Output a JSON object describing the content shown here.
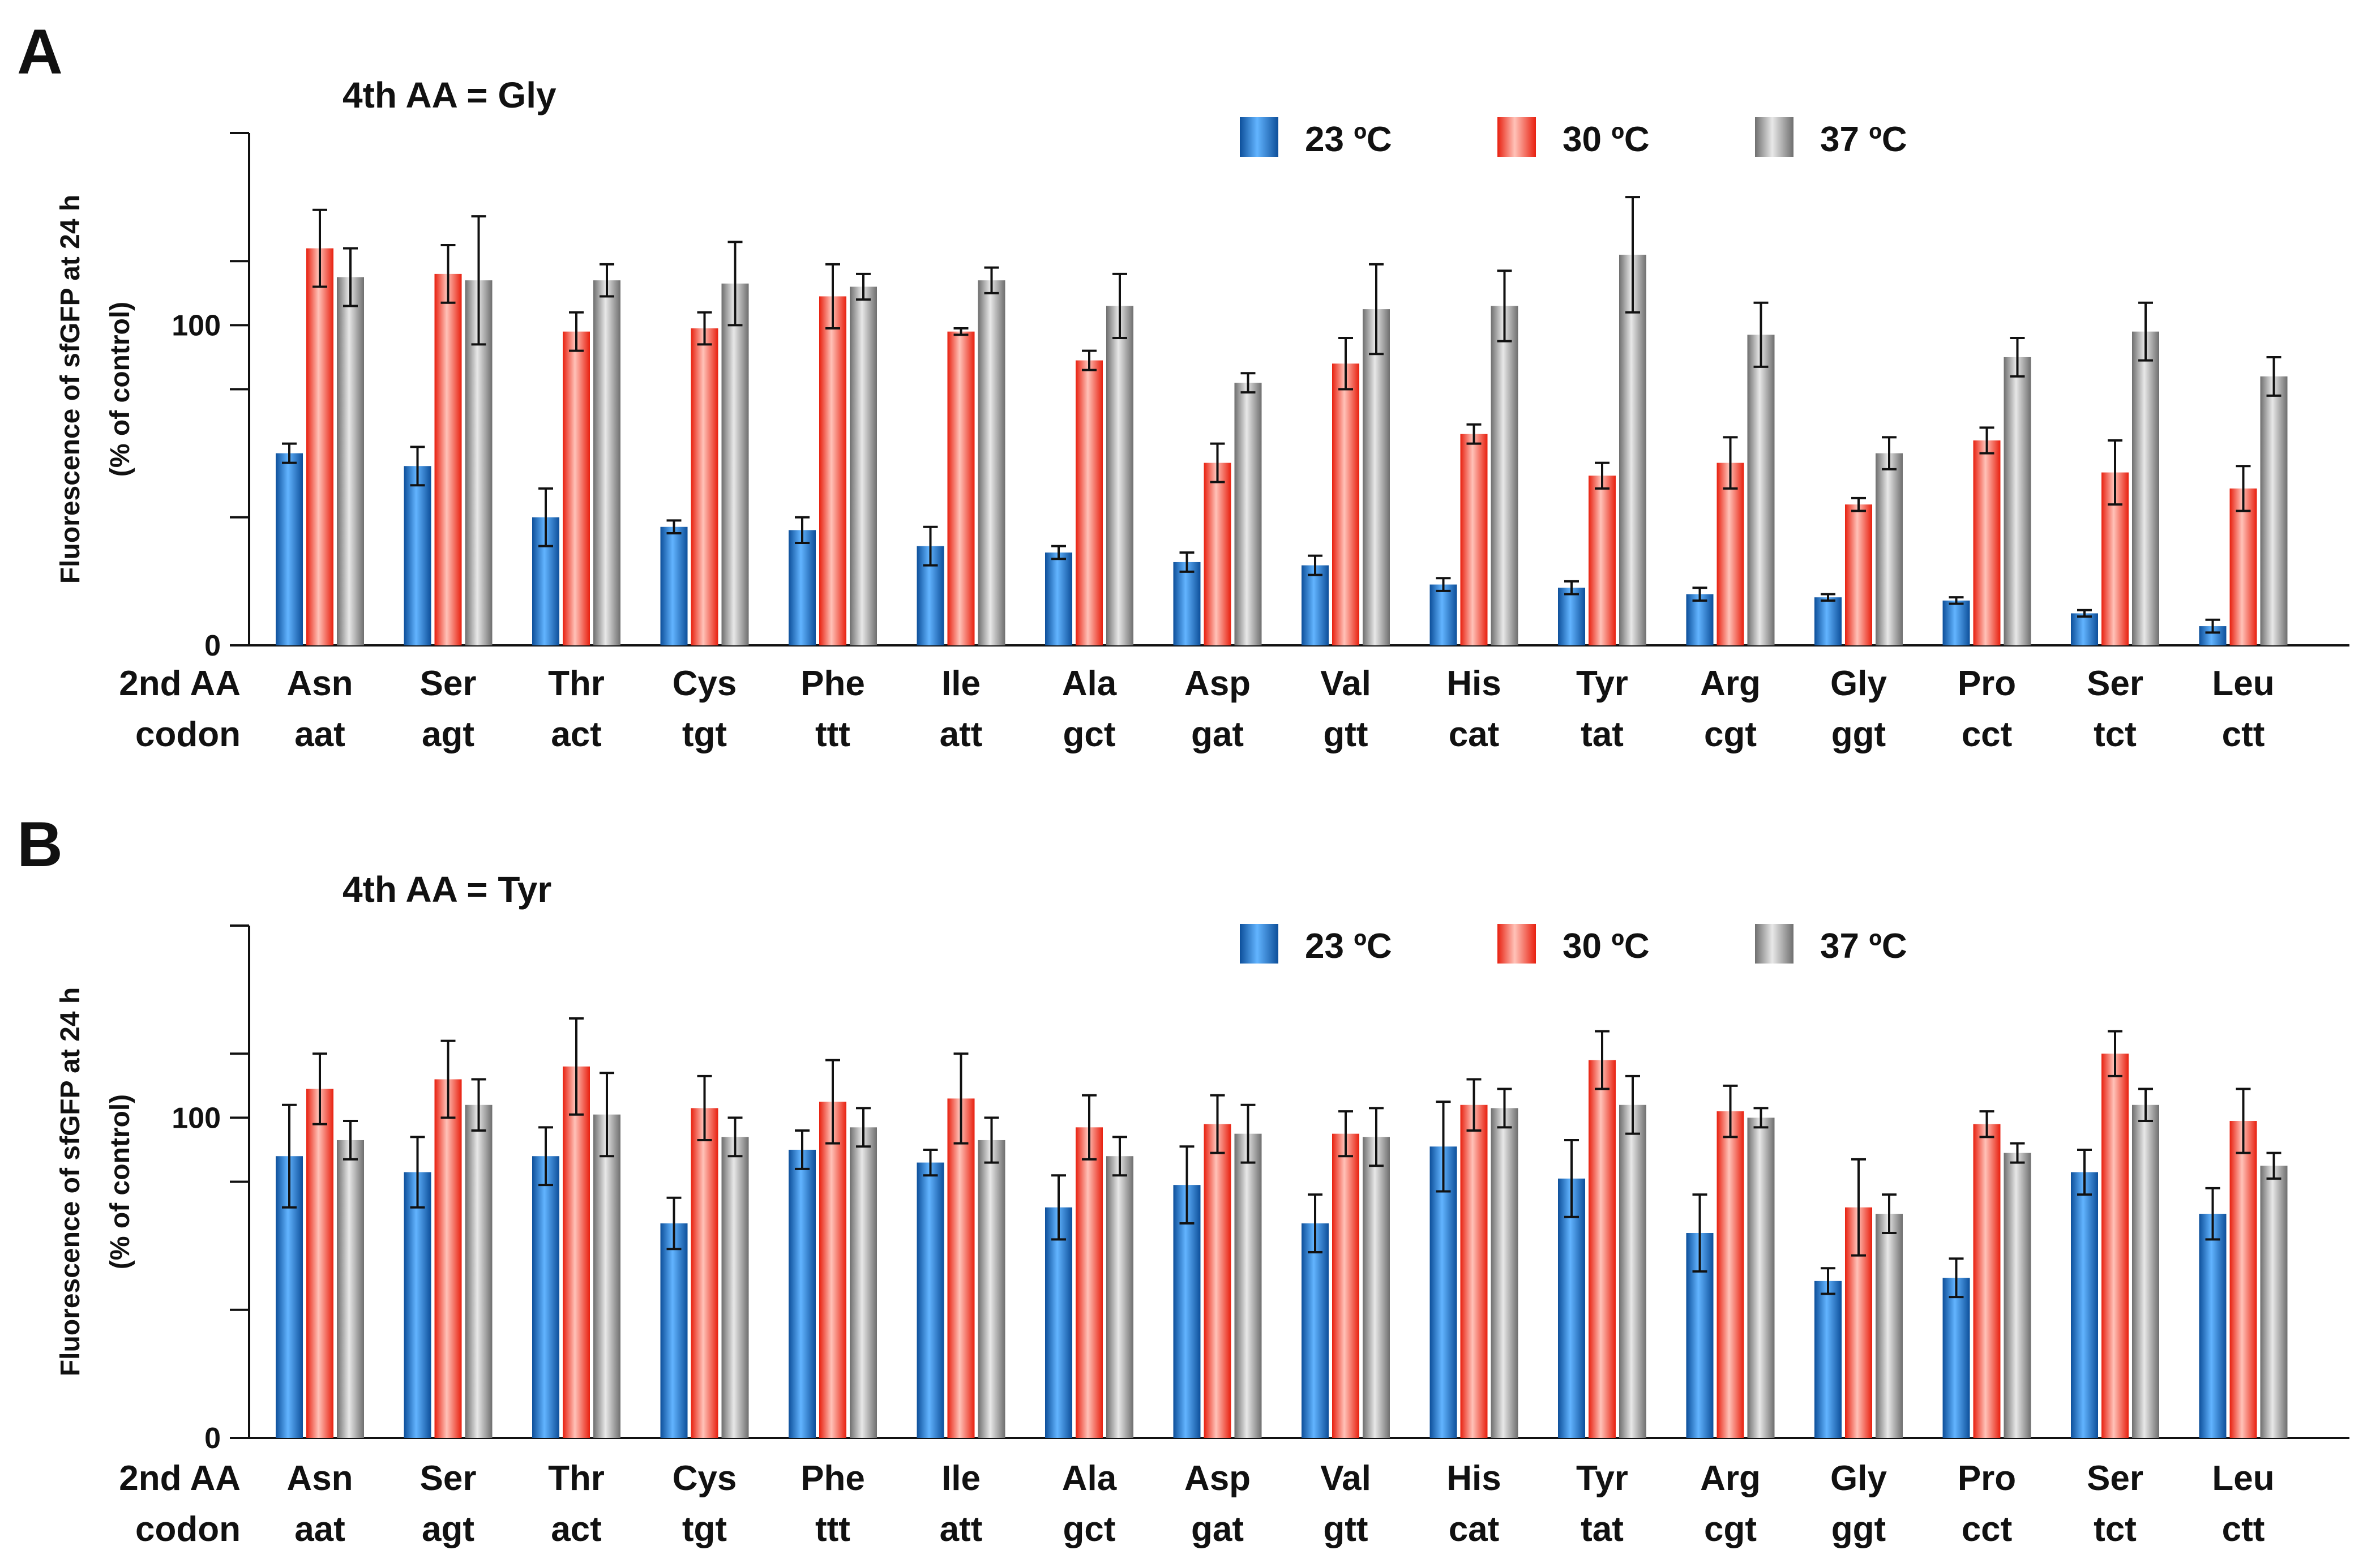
{
  "colors": {
    "c23": "#1a6fc0",
    "c30": "#f23a2a",
    "c37": "#8c8c8c",
    "axis": "#111111"
  },
  "chart_data": [
    {
      "panel": "A",
      "type": "bar",
      "title": "4th AA = Gly",
      "ylabel_line1": "Fluorescence of sfGFP at 24 h",
      "ylabel_line2": "(% of control)",
      "ylim": [
        0,
        160
      ],
      "yticks": [
        0,
        100
      ],
      "row_labels": [
        "2nd AA",
        "codon"
      ],
      "categories": [
        "Asn",
        "Ser",
        "Thr",
        "Cys",
        "Phe",
        "Ile",
        "Ala",
        "Asp",
        "Val",
        "His",
        "Tyr",
        "Arg",
        "Gly",
        "Pro",
        "Ser",
        "Leu"
      ],
      "codons": [
        "aat",
        "agt",
        "act",
        "tgt",
        "ttt",
        "att",
        "gct",
        "gat",
        "gtt",
        "cat",
        "tat",
        "cgt",
        "ggt",
        "cct",
        "tct",
        "ctt"
      ],
      "series": [
        {
          "name": "23 ºC",
          "values": [
            60,
            56,
            40,
            37,
            36,
            31,
            29,
            26,
            25,
            19,
            18,
            16,
            15,
            14,
            10,
            6
          ],
          "errors": [
            3,
            6,
            9,
            2,
            4,
            6,
            2,
            3,
            3,
            2,
            2,
            2,
            1,
            1,
            1,
            2
          ]
        },
        {
          "name": "30 ºC",
          "values": [
            124,
            116,
            98,
            99,
            109,
            98,
            89,
            57,
            88,
            66,
            53,
            57,
            44,
            64,
            54,
            49
          ],
          "errors": [
            12,
            9,
            6,
            5,
            10,
            1,
            3,
            6,
            8,
            3,
            4,
            8,
            2,
            4,
            10,
            7
          ]
        },
        {
          "name": "37 ºC",
          "values": [
            115,
            114,
            114,
            113,
            112,
            114,
            106,
            82,
            105,
            106,
            122,
            97,
            60,
            90,
            98,
            84
          ],
          "errors": [
            9,
            20,
            5,
            13,
            4,
            4,
            10,
            3,
            14,
            11,
            18,
            10,
            5,
            6,
            9,
            6
          ]
        }
      ]
    },
    {
      "panel": "B",
      "type": "bar",
      "title": "4th AA = Tyr",
      "ylabel_line1": "Fluorescence of sfGFP at 24 h",
      "ylabel_line2": "(% of control)",
      "ylim": [
        0,
        160
      ],
      "yticks": [
        0,
        100
      ],
      "row_labels": [
        "2nd AA",
        "codon"
      ],
      "categories": [
        "Asn",
        "Ser",
        "Thr",
        "Cys",
        "Phe",
        "Ile",
        "Ala",
        "Asp",
        "Val",
        "His",
        "Tyr",
        "Arg",
        "Gly",
        "Pro",
        "Ser",
        "Leu"
      ],
      "codons": [
        "aat",
        "agt",
        "act",
        "tgt",
        "ttt",
        "att",
        "gct",
        "gat",
        "gtt",
        "cat",
        "tat",
        "cgt",
        "ggt",
        "cct",
        "tct",
        "ctt"
      ],
      "series": [
        {
          "name": "23 ºC",
          "values": [
            88,
            83,
            88,
            67,
            90,
            86,
            72,
            79,
            67,
            91,
            81,
            64,
            49,
            50,
            83,
            70
          ],
          "errors": [
            16,
            11,
            9,
            8,
            6,
            4,
            10,
            12,
            9,
            14,
            12,
            12,
            4,
            6,
            7,
            8
          ]
        },
        {
          "name": "30 ºC",
          "values": [
            109,
            112,
            116,
            103,
            105,
            106,
            97,
            98,
            95,
            104,
            118,
            102,
            72,
            98,
            120,
            99
          ],
          "errors": [
            11,
            12,
            15,
            10,
            13,
            14,
            10,
            9,
            7,
            8,
            9,
            8,
            15,
            4,
            7,
            10
          ]
        },
        {
          "name": "37 ºC",
          "values": [
            93,
            104,
            101,
            94,
            97,
            93,
            88,
            95,
            94,
            103,
            104,
            100,
            70,
            89,
            104,
            85
          ],
          "errors": [
            6,
            8,
            13,
            6,
            6,
            7,
            6,
            9,
            9,
            6,
            9,
            3,
            6,
            3,
            5,
            4
          ]
        }
      ]
    }
  ]
}
